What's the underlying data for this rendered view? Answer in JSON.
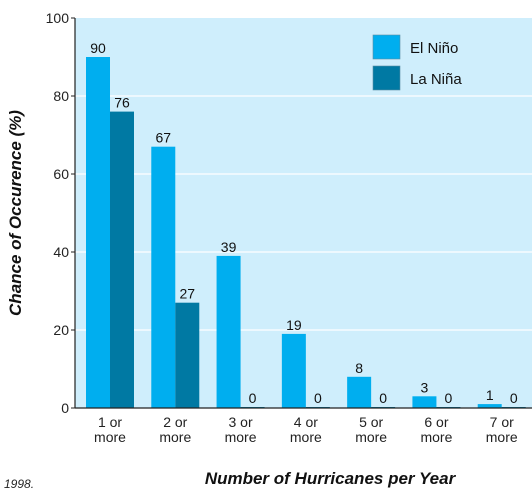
{
  "chart_data": {
    "type": "bar",
    "categories": [
      [
        "1 or",
        "more"
      ],
      [
        "2 or",
        "more"
      ],
      [
        "3 or",
        "more"
      ],
      [
        "4 or",
        "more"
      ],
      [
        "5 or",
        "more"
      ],
      [
        "6 or",
        "more"
      ],
      [
        "7 or",
        "more"
      ]
    ],
    "series": [
      {
        "name": "El Niño",
        "values": [
          90,
          67,
          39,
          19,
          8,
          3,
          1
        ],
        "color": "#00aeef"
      },
      {
        "name": "La Niña",
        "values": [
          76,
          27,
          0,
          0,
          0,
          0,
          0
        ],
        "color": "#0079a3"
      }
    ],
    "xlabel": "Number of Hurricanes per Year",
    "ylabel": "Chance of Occurence (%)",
    "ylim": [
      0,
      100
    ],
    "yticks": [
      0,
      20,
      40,
      60,
      80,
      100
    ],
    "grid": true,
    "legend": "top-right",
    "background": "#cfeefc"
  },
  "footnote": "1998."
}
